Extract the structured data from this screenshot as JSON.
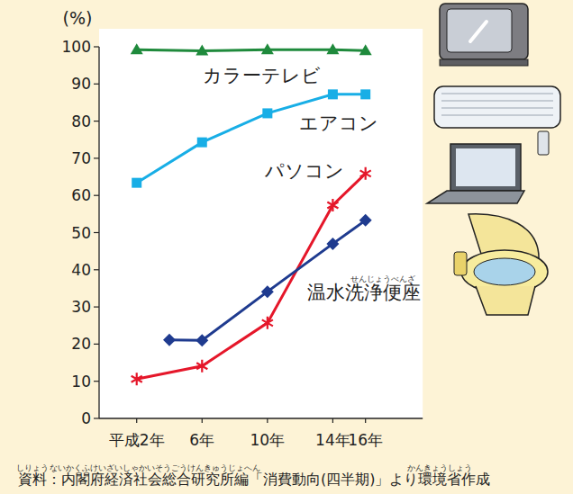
{
  "chart_data": {
    "type": "line",
    "y_label": "(%)",
    "xlim": [
      -0.3,
      19.5
    ],
    "xticks": [
      {
        "value": 2,
        "label": "平成2年"
      },
      {
        "value": 6,
        "label": "6年"
      },
      {
        "value": 10,
        "label": "10年"
      },
      {
        "value": 14,
        "label": "14年"
      },
      {
        "value": 16,
        "label": "16年"
      }
    ],
    "ylim": [
      0,
      100
    ],
    "yticks": [
      0,
      10,
      20,
      30,
      40,
      50,
      60,
      70,
      80,
      90,
      100
    ],
    "grid": false,
    "series": [
      {
        "name": "カラーテレビ",
        "color": "#1f8a3c",
        "marker": "triangle",
        "line_style": "solid",
        "x": [
          2,
          6,
          10,
          14,
          16
        ],
        "values": [
          99.2,
          98.9,
          99.2,
          99.2,
          99.0
        ]
      },
      {
        "name": "エアコン",
        "color": "#18aee6",
        "marker": "square",
        "line_style": "solid",
        "x": [
          2,
          6,
          10,
          14,
          16
        ],
        "values": [
          63.4,
          74.3,
          82.1,
          87.2,
          87.2
        ]
      },
      {
        "name": "パソコン",
        "color": "#e5172a",
        "marker": "asterisk",
        "line_style": "solid",
        "x": [
          2,
          6,
          10,
          14,
          16
        ],
        "values": [
          10.6,
          14.1,
          25.7,
          57.4,
          65.9
        ]
      },
      {
        "name": "温水洗浄便座",
        "color": "#1f3b8f",
        "marker": "diamond",
        "line_style": "solid",
        "x": [
          4,
          6,
          10,
          14,
          16
        ],
        "values": [
          21.1,
          21.0,
          34.1,
          47.0,
          53.3
        ]
      }
    ],
    "annotations": [
      "せんじょうべんざ",
      "しりょう",
      "ないかくふけいざいしゃかいそうごうけんきゅうじょへん",
      "かんきょうしょう"
    ],
    "source": "資料：内閣府経済社会総合研究所編「消費動向(四半期)」より環境省作成"
  }
}
